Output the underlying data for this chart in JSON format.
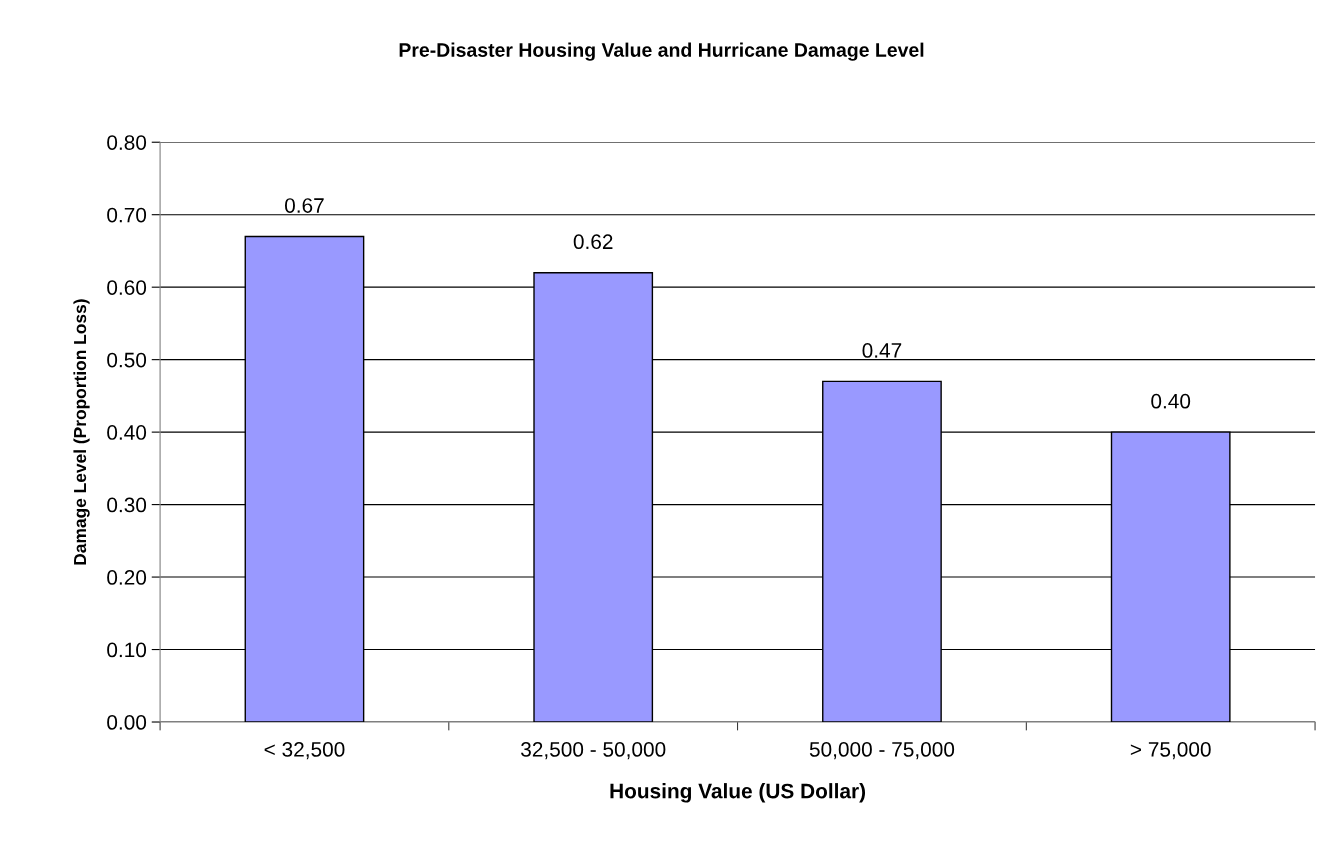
{
  "chart_data": {
    "type": "bar",
    "title": "Pre-Disaster Housing Value and Hurricane Damage Level",
    "xlabel": "Housing Value (US Dollar)",
    "ylabel": "Damage Level (Proportion Loss)",
    "categories": [
      "< 32,500",
      "32,500 - 50,000",
      "50,000 - 75,000",
      "> 75,000"
    ],
    "values": [
      0.67,
      0.62,
      0.47,
      0.4
    ],
    "value_labels": [
      "0.67",
      "0.62",
      "0.47",
      "0.40"
    ],
    "color": "#9999ff",
    "ylim": [
      0,
      0.8
    ],
    "yticks": [
      {
        "value": 0,
        "label": "0.00"
      },
      {
        "value": 0.1,
        "label": "0.10"
      },
      {
        "value": 0.2,
        "label": "0.20"
      },
      {
        "value": 0.3,
        "label": "0.30"
      },
      {
        "value": 0.4,
        "label": "0.40"
      },
      {
        "value": 0.5,
        "label": "0.50"
      },
      {
        "value": 0.6,
        "label": "0.60"
      },
      {
        "value": 0.7,
        "label": "0.70"
      },
      {
        "value": 0.8,
        "label": "0.80"
      }
    ],
    "grid": "y"
  }
}
